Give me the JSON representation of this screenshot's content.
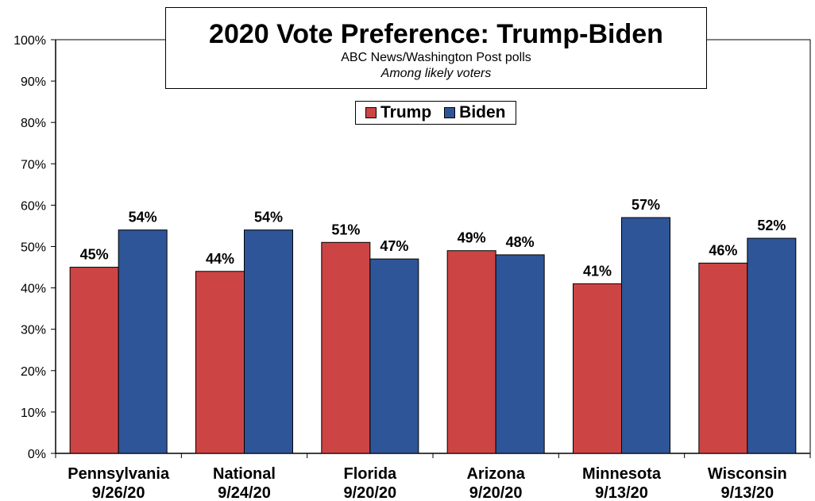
{
  "chart_data": {
    "type": "bar",
    "title": "2020 Vote Preference: Trump-Biden",
    "subtitle": "ABC News/Washington Post polls",
    "subtitle2": "Among likely voters",
    "categories": [
      [
        "Pennsylvania",
        "9/26/20"
      ],
      [
        "National",
        "9/24/20"
      ],
      [
        "Florida",
        "9/20/20"
      ],
      [
        "Arizona",
        "9/20/20"
      ],
      [
        "Minnesota",
        "9/13/20"
      ],
      [
        "Wisconsin",
        "9/13/20"
      ]
    ],
    "series": [
      {
        "name": "Trump",
        "color": "#cc4444",
        "values": [
          45,
          44,
          51,
          49,
          41,
          46
        ]
      },
      {
        "name": "Biden",
        "color": "#2e5597",
        "values": [
          54,
          54,
          47,
          48,
          57,
          52
        ]
      }
    ],
    "ylim": [
      0,
      100
    ],
    "yticks": [
      "0%",
      "10%",
      "20%",
      "30%",
      "40%",
      "50%",
      "60%",
      "70%",
      "80%",
      "90%",
      "100%"
    ],
    "value_suffix": "%",
    "legend_position": "top-center",
    "grid": false
  }
}
